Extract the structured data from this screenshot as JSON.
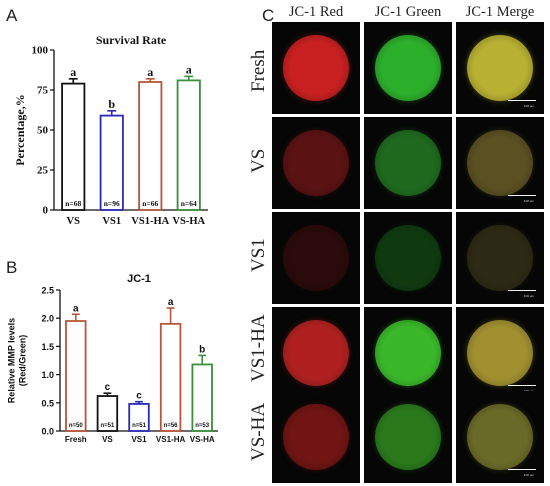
{
  "panels": {
    "a": "A",
    "b": "B",
    "c": "C"
  },
  "chart_data": [
    {
      "type": "bar",
      "title": "Survival Rate",
      "ylabel": "Percentage,%",
      "xlabel": "",
      "ylim": [
        0,
        100
      ],
      "yticks": [
        "0",
        "25",
        "50",
        "75",
        "100"
      ],
      "categories": [
        "VS",
        "VS1",
        "VS1-HA",
        "VS-HA"
      ],
      "values": [
        79,
        59,
        80,
        81
      ],
      "errors": [
        3,
        3,
        2,
        2.5
      ],
      "letters": [
        "a",
        "b",
        "a",
        "a"
      ],
      "n_labels": [
        "n=68",
        "n=96",
        "n=66",
        "n=64"
      ],
      "colors": [
        "#111111",
        "#2a2ab8",
        "#b8553a",
        "#3a8f3a"
      ],
      "grid": false
    },
    {
      "type": "bar",
      "title": "JC-1",
      "ylabel": "Relative MMP levels (Red/Green)",
      "ylabel_lines": [
        "Relative MMP levels",
        "(Red/Green)"
      ],
      "xlabel": "",
      "ylim": [
        0,
        2.5
      ],
      "yticks": [
        "0.0",
        "0.5",
        "1.0",
        "1.5",
        "2.0",
        "2.5"
      ],
      "categories": [
        "Fresh",
        "VS",
        "VS1",
        "VS1-HA",
        "VS-HA"
      ],
      "values": [
        1.95,
        0.62,
        0.48,
        1.9,
        1.18
      ],
      "errors": [
        0.12,
        0.05,
        0.04,
        0.28,
        0.16
      ],
      "letters": [
        "a",
        "c",
        "c",
        "a",
        "b"
      ],
      "n_labels": [
        "n=50",
        "n=51",
        "n=51",
        "n=56",
        "n=53"
      ],
      "colors": [
        "#b8553a",
        "#111111",
        "#2a2ab8",
        "#b8553a",
        "#3a8f3a"
      ],
      "grid": false
    }
  ],
  "micrographs": {
    "columns": [
      "JC-1 Red",
      "JC-1 Green",
      "JC-1 Merge"
    ],
    "rows": [
      "Fresh",
      "VS",
      "VS1",
      "VS1-HA",
      "VS-HA"
    ],
    "scalebar_text": "100 μm",
    "colors": {
      "Fresh": [
        "#c82020",
        "#2cb02c",
        "#b8b032"
      ],
      "VS": [
        "#5a1212",
        "#1f6a1f",
        "#5a5022"
      ],
      "VS1": [
        "#2a0a0a",
        "#0f3a10",
        "#2c2a14"
      ],
      "VS1-HA": [
        "#b02020",
        "#3ab82a",
        "#a09030"
      ],
      "VS-HA": [
        "#701414",
        "#2a7a1c",
        "#6a6a28"
      ]
    }
  }
}
